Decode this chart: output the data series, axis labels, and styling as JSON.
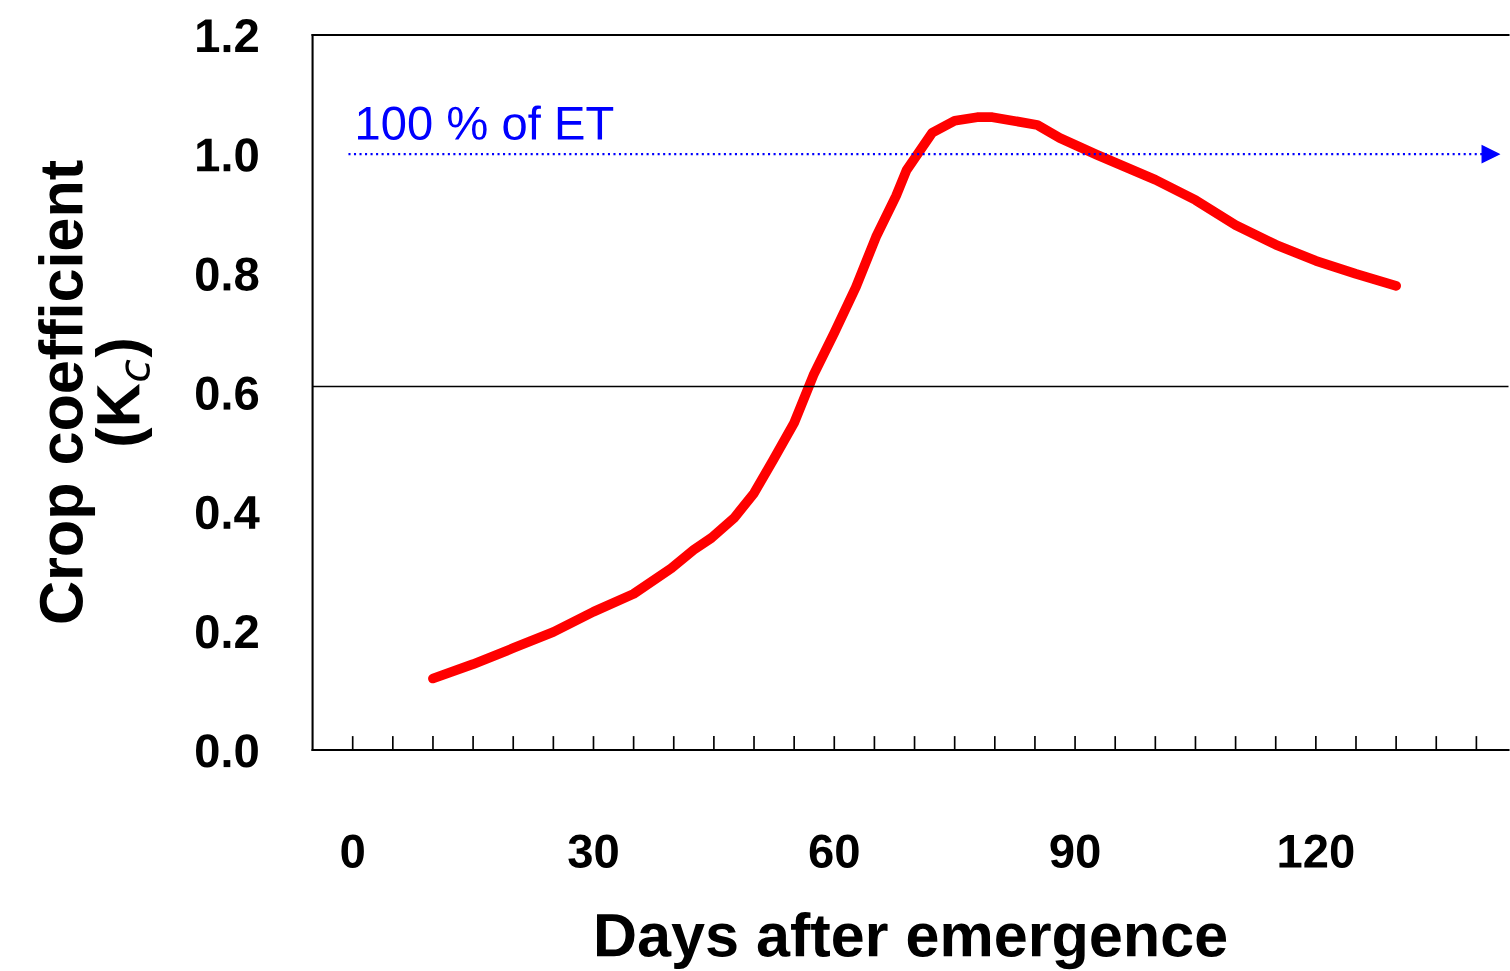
{
  "chart_data": {
    "type": "line",
    "xlabel": "Days after emergence",
    "ylabel": "Crop coefficient\n(K$_{c}$)",
    "series": [
      {
        "color": "#ff0000",
        "x": [
          10,
          15,
          20,
          25,
          30,
          35,
          39.7,
          42.5,
          44.7,
          47.5,
          50,
          52.4,
          55,
          57.4,
          60,
          62.7,
          65.2,
          67.7,
          69,
          72.2,
          75,
          77.8,
          79.7,
          85.3,
          88.1,
          92.7,
          100,
          105,
          110,
          115,
          120,
          125,
          130
        ],
        "values": [
          0.12,
          0.144,
          0.171,
          0.198,
          0.232,
          0.262,
          0.305,
          0.336,
          0.356,
          0.389,
          0.431,
          0.487,
          0.549,
          0.629,
          0.7,
          0.777,
          0.861,
          0.93,
          0.973,
          1.036,
          1.056,
          1.062,
          1.062,
          1.049,
          1.027,
          0.999,
          0.957,
          0.923,
          0.881,
          0.848,
          0.821,
          0.799,
          0.779
        ]
      }
    ],
    "xlim": [
      -5,
      144
    ],
    "ylim": [
      0,
      1.2
    ],
    "xticks": [
      0,
      {
        "value": 5,
        "label": null
      },
      {
        "value": 10,
        "label": null
      },
      {
        "value": 15,
        "label": null
      },
      {
        "value": 20,
        "label": null
      },
      {
        "value": 25,
        "label": null
      },
      30,
      {
        "value": 35,
        "label": null
      },
      {
        "value": 40,
        "label": null
      },
      {
        "value": 45,
        "label": null
      },
      {
        "value": 50,
        "label": null
      },
      {
        "value": 55,
        "label": null
      },
      60,
      {
        "value": 65,
        "label": null
      },
      {
        "value": 70,
        "label": null
      },
      {
        "value": 75,
        "label": null
      },
      {
        "value": 80,
        "label": null
      },
      {
        "value": 85,
        "label": null
      },
      90,
      {
        "value": 95,
        "label": null
      },
      {
        "value": 100,
        "label": null
      },
      {
        "value": 105,
        "label": null
      },
      {
        "value": 110,
        "label": null
      },
      {
        "value": 115,
        "label": null
      },
      120,
      {
        "value": 125,
        "label": null
      },
      {
        "value": 130,
        "label": null
      },
      {
        "value": 135,
        "label": null
      },
      {
        "value": 140,
        "label": null
      }
    ],
    "yticks": [
      {
        "value": 0,
        "label": "0.0"
      },
      {
        "value": 0.2,
        "label": "0.2"
      },
      {
        "value": 0.4,
        "label": "0.4"
      },
      {
        "value": 0.6,
        "label": "0.6"
      },
      {
        "value": 0.8,
        "label": "0.8"
      },
      {
        "value": 1,
        "label": "1.0"
      },
      {
        "value": 1.2,
        "label": "1.2"
      }
    ],
    "ref_lines": [
      {
        "axis": "y",
        "value": 1,
        "label": "100 % of ET",
        "color": "#0000ff",
        "line_style": "dotted"
      },
      {
        "axis": "y",
        "value": 0.61,
        "color": "#000000",
        "line_style": "solid"
      }
    ],
    "grid": false,
    "legend": false,
    "marker": "none",
    "line_style": "solid"
  }
}
